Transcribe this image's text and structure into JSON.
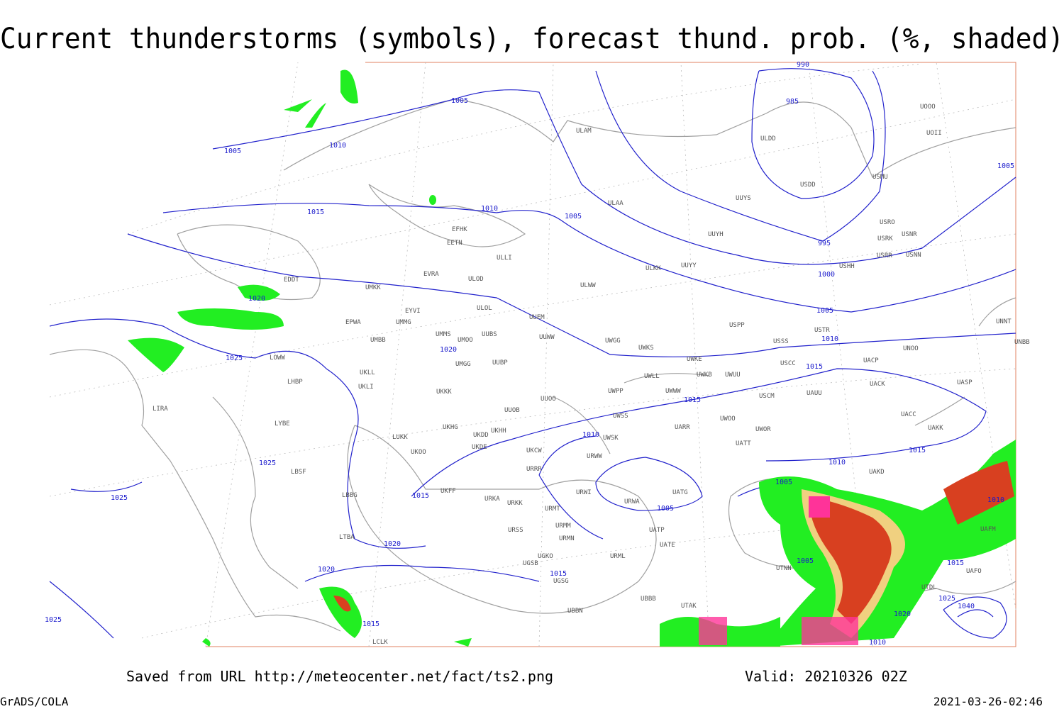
{
  "title": "Current thunderstorms (symbols), forecast thund. prob. (%, shaded)",
  "footer": {
    "saved": "Saved from URL http://meteocenter.net/fact/ts2.png",
    "valid": "Valid: 20210326 02Z",
    "software": "GrADS/COLA",
    "timestamp": "2021-03-26-02:46"
  },
  "stations": [
    "EDDT",
    "EPWA",
    "UMMG",
    "UMBB",
    "LOWW",
    "LHBP",
    "LIRA",
    "LYBE",
    "LBSF",
    "LBBG",
    "LTBA",
    "UMKK",
    "EYVI",
    "EVRA",
    "EFHK",
    "EETN",
    "ULLI",
    "ULOL",
    "ULOD",
    "UMMS",
    "UMOO",
    "UUBS",
    "UMGG",
    "UUBP",
    "UKLL",
    "UKLI",
    "UKKK",
    "UUOO",
    "UUOB",
    "UKHH",
    "UKHG",
    "UKDD",
    "UKDE",
    "LUKK",
    "UKOO",
    "UKCW",
    "URRR",
    "UKFF",
    "URKA",
    "URKK",
    "URMT",
    "URMM",
    "URSS",
    "URMN",
    "UGKO",
    "UGSB",
    "UGSG",
    "UBBB",
    "UBBN",
    "URML",
    "UATE",
    "UATP",
    "UATG",
    "URWA",
    "URWI",
    "URWW",
    "UWWW",
    "UWPP",
    "UWLL",
    "UWKE",
    "UWKB",
    "UWUU",
    "UWKS",
    "UWGG",
    "UUWW",
    "UUEM",
    "ULWW",
    "ULKK",
    "UUYY",
    "UUYH",
    "ULAA",
    "ULAM",
    "UUYS",
    "ULDD",
    "USDD",
    "UOOO",
    "UOII",
    "USMU",
    "USRO",
    "USRK",
    "USNR",
    "USRR",
    "USNN",
    "USHH",
    "USTR",
    "USPP",
    "USSS",
    "USCC",
    "USCM",
    "UAUU",
    "UACK",
    "UASP",
    "UACP",
    "UNOO",
    "UNNT",
    "UNBB",
    "UACC",
    "UAKK",
    "UWOO",
    "UWOR",
    "UARR",
    "UATT",
    "UWSS",
    "UWSK",
    "UAKD",
    "UTAK",
    "UTNN",
    "UTDL",
    "UAFM",
    "UAFO",
    "LCLK"
  ],
  "isobars": [
    1005,
    1010,
    1005,
    1015,
    1010,
    1005,
    990,
    985,
    995,
    1000,
    1005,
    1010,
    1015,
    1015,
    1015,
    1010,
    1005,
    1005,
    1010,
    1005,
    1020,
    1025,
    1020,
    1015,
    1025,
    1025,
    1020,
    1020,
    1015,
    1015,
    1025,
    1010,
    1015,
    1025,
    1040,
    1020,
    1010,
    1005
  ]
}
